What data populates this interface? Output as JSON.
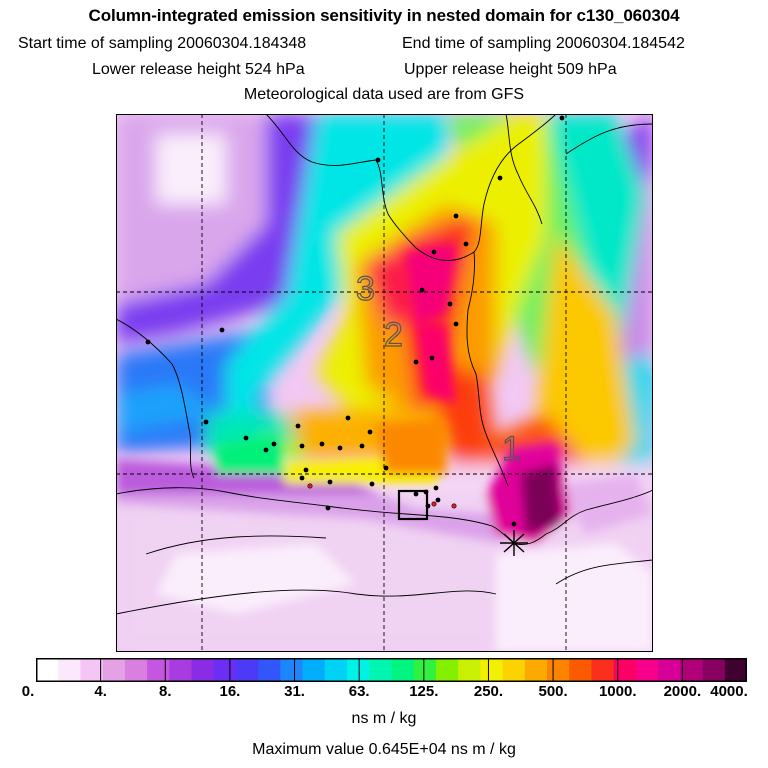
{
  "header": {
    "title": "Column-integrated emission sensitivity in nested domain for c130_060304",
    "start_time": "Start time of sampling 20060304.184348",
    "end_time": "End time of sampling 20060304.184542",
    "lower_release": "Lower release height  524 hPa",
    "upper_release": "Upper release height  509 hPa",
    "met_data": "Meteorological data used are from GFS"
  },
  "map": {
    "labels": [
      "1",
      "2",
      "3"
    ]
  },
  "colorbar": {
    "colors": [
      "#ffffff",
      "#fce8fc",
      "#f5c6f5",
      "#e4a2e4",
      "#d97fe0",
      "#c456e0",
      "#a83ce0",
      "#8a2ce6",
      "#6c2ef2",
      "#4c3af8",
      "#3256fa",
      "#1e86fc",
      "#00aefc",
      "#00d2f6",
      "#00f2e6",
      "#00f6b0",
      "#00f480",
      "#30f040",
      "#84f000",
      "#c8f000",
      "#f2f000",
      "#fcd200",
      "#fcaa00",
      "#fc8400",
      "#fc5a00",
      "#fc2e1e",
      "#fc0066",
      "#f6008c",
      "#d60098",
      "#b0007a",
      "#880060",
      "#400030"
    ],
    "tick_labels": [
      "0.",
      "4.",
      "8.",
      "16.",
      "31.",
      "63.",
      "125.",
      "250.",
      "500.",
      "1000.",
      "2000.",
      "4000."
    ],
    "units": "ns m / kg"
  },
  "footer": {
    "max_value": "Maximum value  0.645E+04 ns m / kg"
  }
}
